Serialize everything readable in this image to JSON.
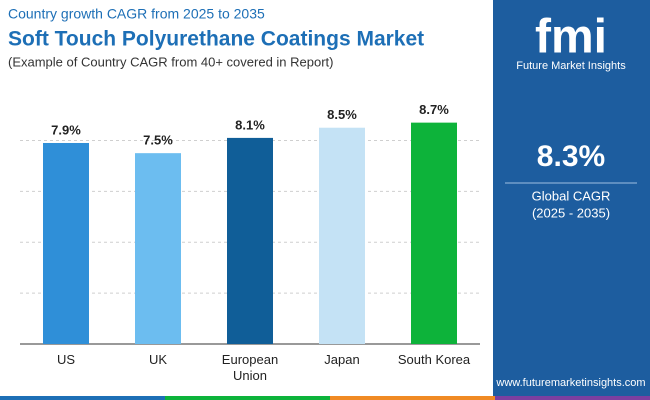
{
  "chart_data": {
    "type": "bar",
    "supertitle": "Country growth CAGR from 2025 to 2035",
    "title": "Soft Touch Polyurethane Coatings Market",
    "subtitle": "(Example of Country CAGR from 40+ covered in Report)",
    "categories": [
      "US",
      "UK",
      "European Union",
      "Japan",
      "South Korea"
    ],
    "values": [
      7.9,
      7.5,
      8.1,
      8.5,
      8.7
    ],
    "value_labels": [
      "7.9%",
      "7.5%",
      "8.1%",
      "8.5%",
      "8.7%"
    ],
    "colors": [
      "#2f8fd8",
      "#6cbdf0",
      "#105e98",
      "#c4e2f5",
      "#0db33a"
    ],
    "ylim": [
      0,
      9
    ],
    "yticks": [
      0,
      2,
      4,
      6,
      8
    ],
    "grid": true
  },
  "panel": {
    "logo": "fmi",
    "brand": "Future Market Insights",
    "headline": "8.3%",
    "caption": "Global CAGR",
    "period": "(2025 - 2035)",
    "website": "www.futuremarketinsights.com"
  }
}
